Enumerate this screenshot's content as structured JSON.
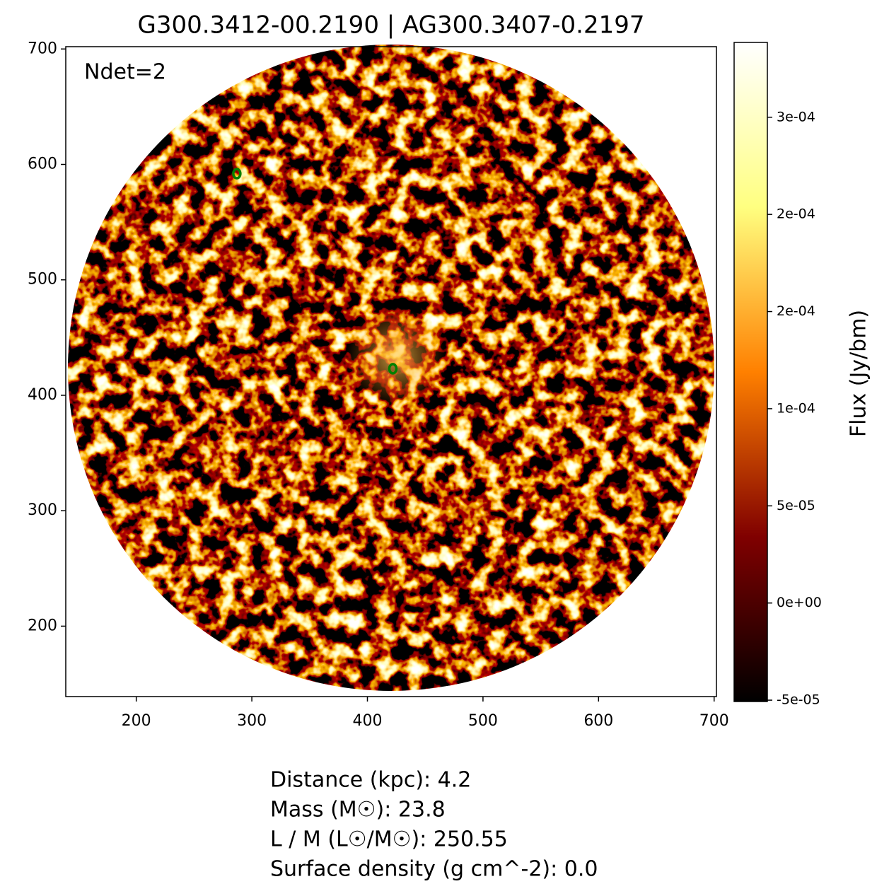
{
  "chart_data": {
    "type": "image",
    "title": "G300.3412-00.2190 | AG300.3407-0.2197",
    "annotation": "Ndet=2",
    "xlim": [
      139,
      702
    ],
    "ylim": [
      139,
      702
    ],
    "xticks": [
      200,
      300,
      400,
      500,
      600,
      700
    ],
    "yticks": [
      200,
      300,
      400,
      500,
      600,
      700
    ],
    "detections": {
      "x": [
        287,
        422
      ],
      "y": [
        592,
        423
      ],
      "color": "#008000"
    },
    "colorbar": {
      "label": "Flux (Jy/bm)",
      "colormap": "afmhot",
      "lim": [
        -5.07e-05,
        0.0002885
      ],
      "ticks": [
        {
          "value": -5e-05,
          "label": "-5e-05"
        },
        {
          "value": 0,
          "label": "0e+00"
        },
        {
          "value": 5e-05,
          "label": "5e-05"
        },
        {
          "value": 0.0001,
          "label": "1e-04"
        },
        {
          "value": 0.00015,
          "label": "2e-04"
        },
        {
          "value": 0.0002,
          "label": "2e-04"
        },
        {
          "value": 0.00025,
          "label": "3e-04"
        }
      ]
    },
    "info": [
      "Distance (kpc): 4.2",
      "Mass (M☉): 23.8",
      "L / M (L☉/M☉): 250.55",
      "Surface density (g cm^-2): 0.0"
    ]
  }
}
